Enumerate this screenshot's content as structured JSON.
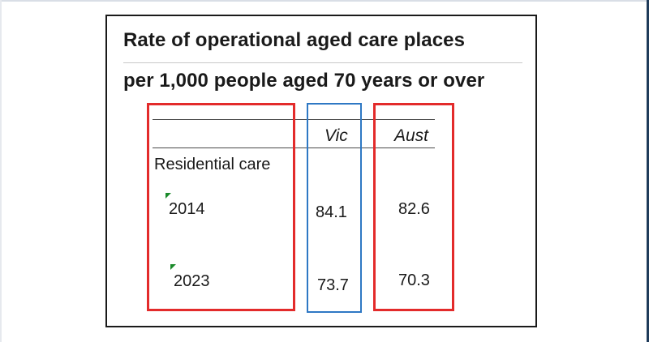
{
  "title": {
    "line1": "Rate of operational aged care places",
    "line2": "per 1,000 people aged 70 years or over"
  },
  "table": {
    "columns": [
      "Vic",
      "Aust"
    ],
    "section_label": "Residential care",
    "rows": [
      {
        "year": "2014",
        "vic": "84.1",
        "aust": "82.6"
      },
      {
        "year": "2023",
        "vic": "73.7",
        "aust": "70.3"
      }
    ]
  },
  "colors": {
    "highlight_red": "#e32b2b",
    "highlight_blue": "#2e78c4",
    "comment_marker": "#1a8a2a"
  }
}
